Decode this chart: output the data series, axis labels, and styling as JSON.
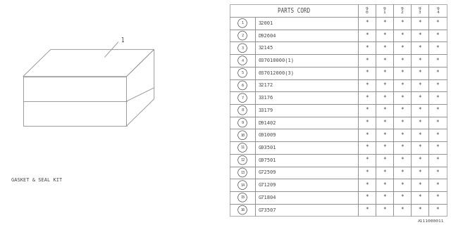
{
  "bg_color": "#ffffff",
  "line_color": "#999999",
  "text_color": "#444444",
  "parts_cord_header": "PARTS CORD",
  "year_headers": [
    "9\n0",
    "9\n1",
    "9\n2",
    "9\n3",
    "9\n4"
  ],
  "rows": [
    {
      "num": 1,
      "code": "32001"
    },
    {
      "num": 2,
      "code": "D92604"
    },
    {
      "num": 3,
      "code": "32145"
    },
    {
      "num": 4,
      "code": "037010000(1)"
    },
    {
      "num": 5,
      "code": "037012000(3)"
    },
    {
      "num": 6,
      "code": "32172"
    },
    {
      "num": 7,
      "code": "33176"
    },
    {
      "num": 8,
      "code": "33179"
    },
    {
      "num": 9,
      "code": "D91402"
    },
    {
      "num": 10,
      "code": "G91009"
    },
    {
      "num": 11,
      "code": "G93501"
    },
    {
      "num": 12,
      "code": "G97501"
    },
    {
      "num": 13,
      "code": "G72509"
    },
    {
      "num": 14,
      "code": "G71209"
    },
    {
      "num": 15,
      "code": "G71804"
    },
    {
      "num": 16,
      "code": "G73507"
    }
  ],
  "label_text": "GASKET & SEAL KIT",
  "diagram_label": "1",
  "footnote": "A111000011"
}
